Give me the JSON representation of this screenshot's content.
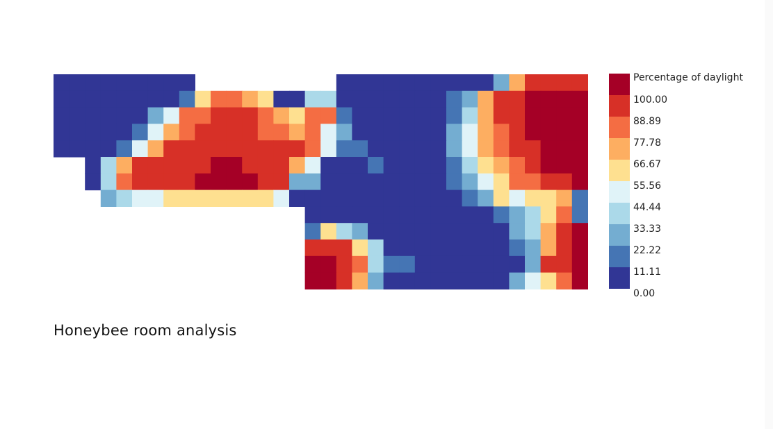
{
  "caption": "Honeybee room analysis",
  "chart_data": {
    "type": "heatmap",
    "title": "",
    "legend": {
      "title": "Percentage of daylight",
      "position": "right",
      "ticks": [
        "100.00",
        "88.89",
        "77.78",
        "66.67",
        "55.56",
        "44.44",
        "33.33",
        "22.22",
        "11.11",
        "0.00"
      ],
      "colors": [
        "#a50026",
        "#d73027",
        "#f46d43",
        "#fdae61",
        "#fee090",
        "#e0f3f8",
        "#abd9e9",
        "#74add1",
        "#4575b4",
        "#313695"
      ]
    },
    "grid": {
      "columns": 34,
      "rows": 13,
      "values": [
        [
          0,
          0,
          0,
          0,
          0,
          0,
          0,
          0,
          0,
          null,
          null,
          null,
          null,
          null,
          null,
          null,
          null,
          null,
          0,
          0,
          0,
          0,
          0,
          0,
          0,
          0,
          0,
          0,
          28,
          72,
          90,
          95,
          97,
          95
        ],
        [
          0,
          0,
          0,
          0,
          0,
          0,
          0,
          5,
          15,
          62,
          78,
          86,
          72,
          60,
          8,
          0,
          40,
          34,
          0,
          0,
          0,
          0,
          0,
          5,
          10,
          14,
          30,
          70,
          92,
          98,
          100,
          100,
          100,
          100
        ],
        [
          0,
          0,
          0,
          0,
          0,
          4,
          26,
          55,
          82,
          88,
          96,
          98,
          94,
          86,
          72,
          66,
          84,
          80,
          20,
          8,
          0,
          0,
          0,
          0,
          5,
          14,
          40,
          68,
          95,
          98,
          100,
          100,
          100,
          100
        ],
        [
          0,
          0,
          0,
          0,
          4,
          15,
          46,
          74,
          84,
          92,
          97,
          98,
          93,
          88,
          80,
          74,
          82,
          52,
          24,
          5,
          2,
          0,
          0,
          0,
          10,
          25,
          50,
          72,
          88,
          96,
          100,
          100,
          100,
          100
        ],
        [
          0,
          0,
          0,
          0,
          14,
          46,
          70,
          92,
          96,
          96,
          97,
          98,
          98,
          96,
          92,
          90,
          78,
          48,
          18,
          14,
          6,
          2,
          4,
          4,
          8,
          26,
          48,
          72,
          84,
          92,
          96,
          100,
          100,
          100
        ],
        [
          null,
          null,
          4,
          42,
          72,
          92,
          98,
          98,
          99,
          99,
          100,
          100,
          99,
          98,
          96,
          68,
          46,
          4,
          2,
          0,
          12,
          4,
          3,
          3,
          4,
          13,
          34,
          58,
          76,
          84,
          93,
          100,
          100,
          100
        ],
        [
          null,
          null,
          6,
          44,
          88,
          97,
          98,
          99,
          99,
          100,
          100,
          100,
          100,
          96,
          90,
          32,
          26,
          0,
          5,
          0,
          0,
          0,
          0,
          3,
          8,
          13,
          32,
          52,
          66,
          78,
          88,
          96,
          98,
          100
        ],
        [
          null,
          null,
          null,
          30,
          40,
          48,
          52,
          58,
          60,
          62,
          64,
          60,
          62,
          58,
          54,
          10,
          0,
          0,
          0,
          3,
          3,
          2,
          3,
          3,
          5,
          8,
          12,
          28,
          56,
          48,
          64,
          60,
          70,
          20
        ],
        [
          null,
          null,
          null,
          null,
          null,
          null,
          null,
          null,
          null,
          null,
          null,
          null,
          null,
          null,
          null,
          null,
          0,
          0,
          0,
          2,
          0,
          5,
          0,
          0,
          2,
          0,
          2,
          5,
          20,
          28,
          44,
          60,
          80,
          12
        ],
        [
          null,
          null,
          null,
          null,
          null,
          null,
          null,
          null,
          null,
          null,
          null,
          null,
          null,
          null,
          null,
          null,
          22,
          66,
          38,
          24,
          4,
          0,
          0,
          0,
          0,
          0,
          0,
          2,
          8,
          28,
          40,
          72,
          92,
          100
        ],
        [
          null,
          null,
          null,
          null,
          null,
          null,
          null,
          null,
          null,
          null,
          null,
          null,
          null,
          null,
          null,
          null,
          90,
          92,
          94,
          62,
          36,
          6,
          0,
          0,
          0,
          0,
          0,
          2,
          6,
          18,
          32,
          76,
          96,
          100
        ],
        [
          null,
          null,
          null,
          null,
          null,
          null,
          null,
          null,
          null,
          null,
          null,
          null,
          null,
          null,
          null,
          null,
          100,
          100,
          96,
          82,
          36,
          16,
          12,
          0,
          0,
          0,
          0,
          0,
          4,
          10,
          30,
          90,
          96,
          100
        ],
        [
          null,
          null,
          null,
          null,
          null,
          null,
          null,
          null,
          null,
          null,
          null,
          null,
          null,
          null,
          null,
          null,
          100,
          100,
          90,
          70,
          24,
          8,
          6,
          2,
          0,
          0,
          0,
          0,
          10,
          24,
          46,
          62,
          84,
          100
        ]
      ]
    }
  }
}
